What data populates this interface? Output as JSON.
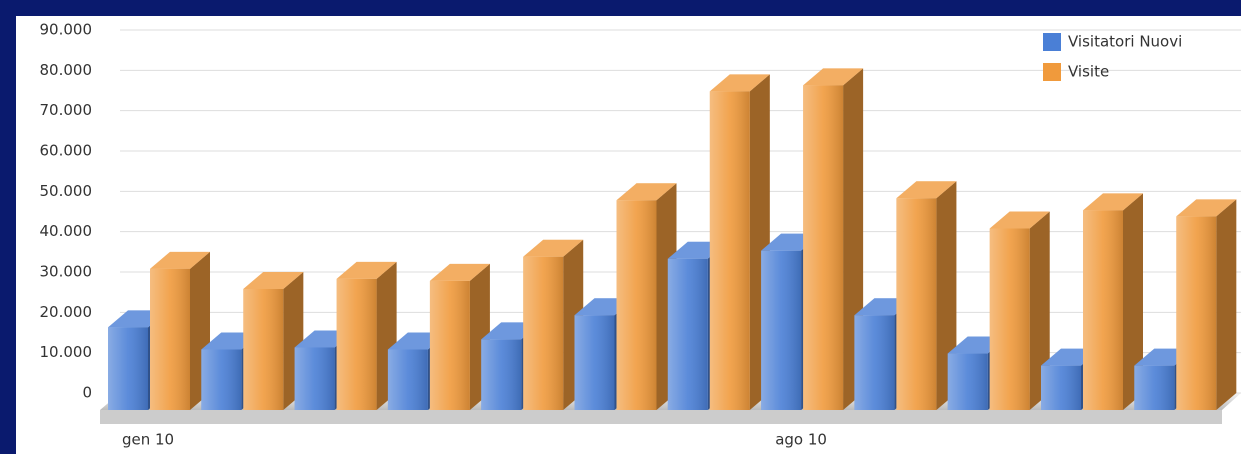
{
  "chart_data": {
    "type": "bar3d",
    "categories": [
      "gen 10",
      null,
      null,
      null,
      null,
      null,
      null,
      "ago 10",
      null,
      null,
      null,
      null
    ],
    "series": [
      {
        "name": "Visitatori Nuovi",
        "color": "#4a7fd6",
        "values": [
          20500,
          15000,
          15500,
          15000,
          17500,
          23500,
          37500,
          39500,
          23500,
          14000,
          11000,
          11000
        ]
      },
      {
        "name": "Visite",
        "color": "#f09a3c",
        "values": [
          35000,
          30000,
          32500,
          32000,
          38000,
          52000,
          79000,
          80500,
          52500,
          45000,
          49500,
          48000
        ]
      }
    ],
    "ylim": [
      0,
      90000
    ],
    "yticks": [
      0,
      {
        "value": 10000,
        "label": "10.000"
      },
      {
        "value": 20000,
        "label": "20.000"
      },
      {
        "value": 30000,
        "label": "30.000"
      },
      {
        "value": 40000,
        "label": "40.000"
      },
      {
        "value": 50000,
        "label": "50.000"
      },
      {
        "value": 60000,
        "label": "60.000"
      },
      {
        "value": 70000,
        "label": "70.000"
      },
      {
        "value": 80000,
        "label": "80.000"
      },
      {
        "value": 90000,
        "label": "90.000"
      }
    ],
    "grid": true,
    "legend": "top-right"
  }
}
